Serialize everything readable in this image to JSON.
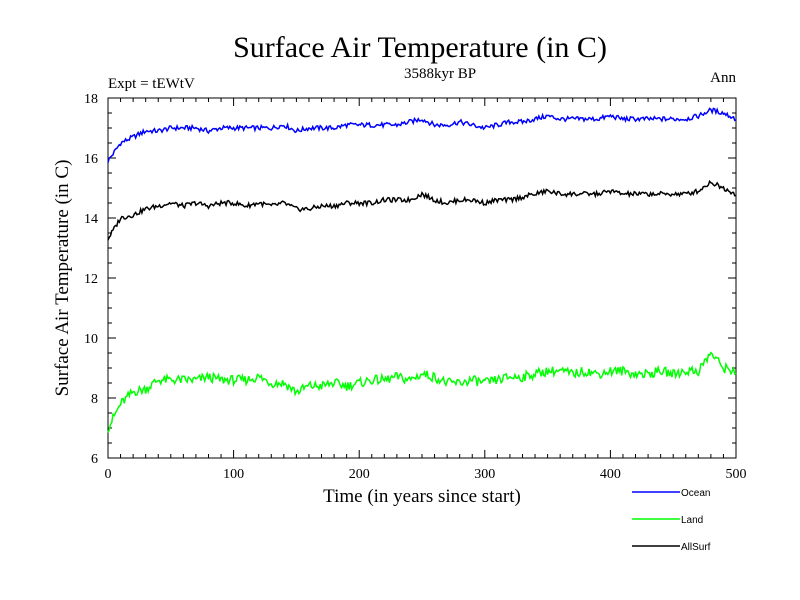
{
  "chart_data": {
    "type": "line",
    "title": "Surface Air Temperature (in C)",
    "subtitle": "3588kyr BP",
    "left_note": "Expt = tEWtV",
    "right_note": "Ann",
    "xlabel": "Time (in years since start)",
    "ylabel": "Surface Air Temperature (in C)",
    "xlim": [
      0,
      500
    ],
    "ylim": [
      6,
      18
    ],
    "x_ticks": [
      0,
      100,
      200,
      300,
      400,
      500
    ],
    "y_ticks": [
      6,
      8,
      10,
      12,
      14,
      16,
      18
    ],
    "legend_position": "bottom-right",
    "x": [
      0,
      10,
      20,
      30,
      40,
      50,
      60,
      70,
      80,
      90,
      100,
      110,
      120,
      130,
      140,
      150,
      160,
      170,
      180,
      190,
      200,
      210,
      220,
      230,
      240,
      250,
      260,
      270,
      280,
      290,
      300,
      310,
      320,
      330,
      340,
      350,
      360,
      370,
      380,
      390,
      400,
      410,
      420,
      430,
      440,
      450,
      460,
      470,
      480,
      490,
      500
    ],
    "series": [
      {
        "name": "Ocean",
        "color": "#0000ff",
        "values": [
          15.9,
          16.5,
          16.7,
          16.9,
          16.9,
          17.0,
          17.0,
          17.0,
          16.9,
          17.0,
          17.0,
          17.0,
          17.0,
          17.0,
          17.1,
          16.9,
          17.0,
          17.0,
          17.0,
          17.1,
          17.1,
          17.1,
          17.1,
          17.1,
          17.2,
          17.3,
          17.1,
          17.1,
          17.2,
          17.1,
          17.0,
          17.1,
          17.2,
          17.2,
          17.3,
          17.4,
          17.3,
          17.3,
          17.3,
          17.3,
          17.4,
          17.3,
          17.3,
          17.3,
          17.3,
          17.3,
          17.3,
          17.4,
          17.6,
          17.5,
          17.3
        ]
      },
      {
        "name": "Land",
        "color": "#00ff00",
        "values": [
          7.0,
          7.8,
          8.2,
          8.3,
          8.6,
          8.6,
          8.6,
          8.6,
          8.7,
          8.6,
          8.6,
          8.6,
          8.7,
          8.5,
          8.5,
          8.2,
          8.4,
          8.4,
          8.5,
          8.4,
          8.5,
          8.6,
          8.6,
          8.7,
          8.6,
          8.8,
          8.7,
          8.5,
          8.5,
          8.6,
          8.5,
          8.6,
          8.7,
          8.7,
          8.8,
          8.9,
          8.9,
          8.8,
          8.9,
          8.8,
          8.9,
          8.9,
          8.8,
          8.8,
          8.9,
          8.8,
          8.9,
          8.9,
          9.5,
          9.0,
          8.9
        ]
      },
      {
        "name": "AllSurf",
        "color": "#000000",
        "values": [
          13.3,
          14.0,
          14.1,
          14.3,
          14.4,
          14.5,
          14.4,
          14.5,
          14.4,
          14.5,
          14.5,
          14.4,
          14.5,
          14.4,
          14.5,
          14.3,
          14.3,
          14.4,
          14.4,
          14.5,
          14.5,
          14.5,
          14.6,
          14.6,
          14.6,
          14.8,
          14.6,
          14.5,
          14.6,
          14.6,
          14.5,
          14.6,
          14.6,
          14.7,
          14.8,
          14.9,
          14.8,
          14.8,
          14.8,
          14.8,
          14.9,
          14.8,
          14.8,
          14.8,
          14.8,
          14.8,
          14.8,
          14.9,
          15.2,
          15.0,
          14.8
        ]
      }
    ]
  }
}
